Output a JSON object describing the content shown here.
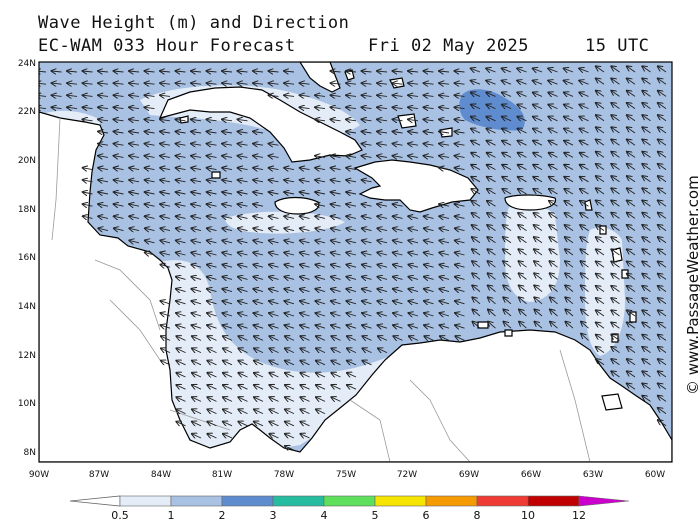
{
  "header": {
    "line1": "Wave Height (m) and Direction",
    "line2": "EC-WAM 033 Hour Forecast",
    "date": "Fri 02 May 2025",
    "time": "15 UTC"
  },
  "axes": {
    "lat_labels": [
      "24N",
      "22N",
      "20N",
      "18N",
      "16N",
      "14N",
      "12N",
      "10N",
      "8N"
    ],
    "lon_labels": [
      "90W",
      "87W",
      "84W",
      "81W",
      "78W",
      "75W",
      "72W",
      "69W",
      "66W",
      "63W",
      "60W"
    ]
  },
  "legend": {
    "ticks": [
      "0.5",
      "1",
      "2",
      "3",
      "4",
      "5",
      "6",
      "8",
      "10",
      "12"
    ],
    "colors": [
      "#e4ecf7",
      "#a9c2e4",
      "#5f8bcf",
      "#26bca0",
      "#5ee05c",
      "#f5e500",
      "#f59a00",
      "#ee3b33",
      "#c00000",
      "#cc00cc"
    ]
  },
  "map": {
    "land_color": "#ffffff",
    "sea_color_1_2m": "#a9c2e4",
    "sea_color_0_5_1m": "#e4ecf7",
    "sea_color_2_3m": "#5f8bcf",
    "wave_direction_arrows": "mostly-westward"
  },
  "watermark": "© www.PassageWeather.com"
}
